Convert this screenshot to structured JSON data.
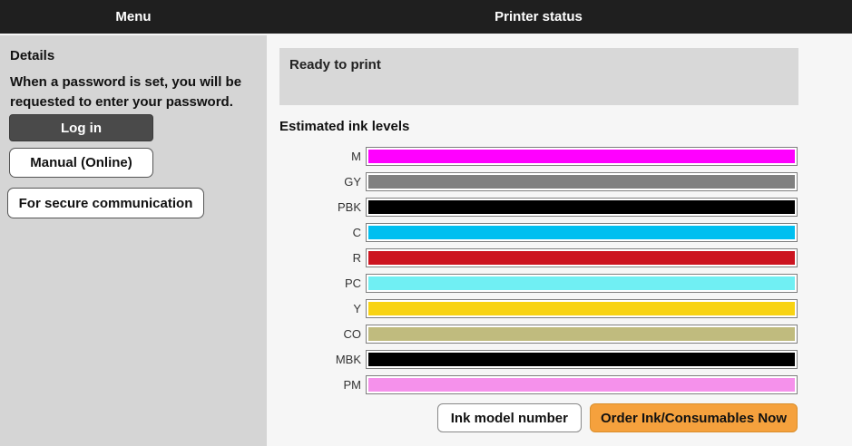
{
  "header": {
    "menu_label": "Menu",
    "title": "Printer status"
  },
  "sidebar": {
    "details_heading": "Details",
    "details_text": "When a password is set, you will be requested to enter your password.",
    "login_button": "Log in",
    "manual_button": "Manual (Online)",
    "secure_button": "For secure communication"
  },
  "main": {
    "status_text": "Ready to print",
    "ink_section_title": "Estimated ink levels",
    "ink_levels": [
      {
        "label": "M",
        "color": "#ff00ff",
        "level_percent": 100
      },
      {
        "label": "GY",
        "color": "#808080",
        "level_percent": 100
      },
      {
        "label": "PBK",
        "color": "#000000",
        "level_percent": 100
      },
      {
        "label": "C",
        "color": "#00bff0",
        "level_percent": 100
      },
      {
        "label": "R",
        "color": "#cc1420",
        "level_percent": 100
      },
      {
        "label": "PC",
        "color": "#70eff3",
        "level_percent": 100
      },
      {
        "label": "Y",
        "color": "#f8d313",
        "level_percent": 100
      },
      {
        "label": "CO",
        "color": "#c0bb7e",
        "level_percent": 100
      },
      {
        "label": "MBK",
        "color": "#000000",
        "level_percent": 100
      },
      {
        "label": "PM",
        "color": "#f591eb",
        "level_percent": 100
      }
    ],
    "ink_model_button": "Ink model number",
    "order_button": "Order Ink/Consumables Now"
  },
  "colors": {
    "header_bg": "#1f1f1f",
    "sidebar_bg": "#d5d5d5",
    "main_bg": "#f6f6f6",
    "status_box_bg": "#d8d8d8",
    "login_button_bg": "#4a4a4a",
    "order_button_bg": "#f5a13d",
    "order_button_border": "#d98e2c"
  }
}
